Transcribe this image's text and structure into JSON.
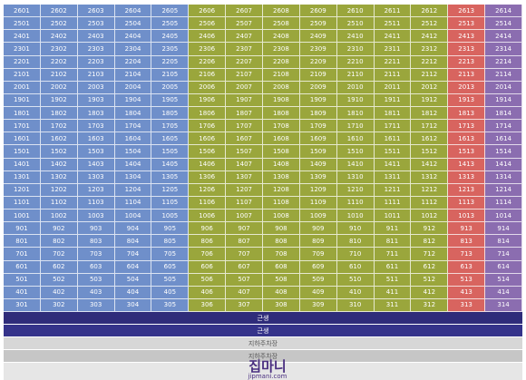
{
  "grid": {
    "rows": [
      [
        "2601",
        "2602",
        "2603",
        "2604",
        "2605",
        "2606",
        "2607",
        "2608",
        "2609",
        "2610",
        "2611",
        "2612",
        "2613",
        "2614"
      ],
      [
        "2501",
        "2502",
        "2503",
        "2504",
        "2505",
        "2506",
        "2507",
        "2508",
        "2509",
        "2510",
        "2511",
        "2512",
        "2513",
        "2514"
      ],
      [
        "2401",
        "2402",
        "2403",
        "2404",
        "2405",
        "2406",
        "2407",
        "2408",
        "2409",
        "2410",
        "2411",
        "2412",
        "2413",
        "2414"
      ],
      [
        "2301",
        "2302",
        "2303",
        "2304",
        "2305",
        "2306",
        "2307",
        "2308",
        "2309",
        "2310",
        "2311",
        "2312",
        "2313",
        "2314"
      ],
      [
        "2201",
        "2202",
        "2203",
        "2204",
        "2205",
        "2206",
        "2207",
        "2208",
        "2209",
        "2210",
        "2211",
        "2212",
        "2213",
        "2214"
      ],
      [
        "2101",
        "2102",
        "2103",
        "2104",
        "2105",
        "2106",
        "2107",
        "2108",
        "2109",
        "2110",
        "2111",
        "2112",
        "2113",
        "2114"
      ],
      [
        "2001",
        "2002",
        "2003",
        "2004",
        "2005",
        "2006",
        "2007",
        "2008",
        "2009",
        "2010",
        "2011",
        "2012",
        "2013",
        "2014"
      ],
      [
        "1901",
        "1902",
        "1903",
        "1904",
        "1905",
        "1906",
        "1907",
        "1908",
        "1909",
        "1910",
        "1911",
        "1912",
        "1913",
        "1914"
      ],
      [
        "1801",
        "1802",
        "1803",
        "1804",
        "1805",
        "1806",
        "1807",
        "1808",
        "1809",
        "1810",
        "1811",
        "1812",
        "1813",
        "1814"
      ],
      [
        "1701",
        "1702",
        "1703",
        "1704",
        "1705",
        "1706",
        "1707",
        "1708",
        "1709",
        "1710",
        "1711",
        "1712",
        "1713",
        "1714"
      ],
      [
        "1601",
        "1602",
        "1603",
        "1604",
        "1605",
        "1606",
        "1607",
        "1608",
        "1609",
        "1610",
        "1611",
        "1612",
        "1613",
        "1614"
      ],
      [
        "1501",
        "1502",
        "1503",
        "1504",
        "1505",
        "1506",
        "1507",
        "1508",
        "1509",
        "1510",
        "1511",
        "1512",
        "1513",
        "1514"
      ],
      [
        "1401",
        "1402",
        "1403",
        "1404",
        "1405",
        "1406",
        "1407",
        "1408",
        "1409",
        "1410",
        "1411",
        "1412",
        "1413",
        "1414"
      ],
      [
        "1301",
        "1302",
        "1303",
        "1304",
        "1305",
        "1306",
        "1307",
        "1308",
        "1309",
        "1310",
        "1311",
        "1312",
        "1313",
        "1314"
      ],
      [
        "1201",
        "1202",
        "1203",
        "1204",
        "1205",
        "1206",
        "1207",
        "1208",
        "1209",
        "1210",
        "1211",
        "1212",
        "1213",
        "1214"
      ],
      [
        "1101",
        "1102",
        "1103",
        "1104",
        "1105",
        "1106",
        "1107",
        "1108",
        "1109",
        "1110",
        "1111",
        "1112",
        "1113",
        "1114"
      ],
      [
        "1001",
        "1002",
        "1003",
        "1004",
        "1005",
        "1006",
        "1007",
        "1008",
        "1009",
        "1010",
        "1011",
        "1012",
        "1013",
        "1014"
      ],
      [
        "901",
        "902",
        "903",
        "904",
        "905",
        "906",
        "907",
        "908",
        "909",
        "910",
        "911",
        "912",
        "913",
        "914"
      ],
      [
        "801",
        "802",
        "803",
        "804",
        "805",
        "806",
        "807",
        "808",
        "809",
        "810",
        "811",
        "812",
        "813",
        "814"
      ],
      [
        "701",
        "702",
        "703",
        "704",
        "705",
        "706",
        "707",
        "708",
        "709",
        "710",
        "711",
        "712",
        "713",
        "714"
      ],
      [
        "601",
        "602",
        "603",
        "604",
        "605",
        "606",
        "607",
        "608",
        "609",
        "610",
        "611",
        "612",
        "613",
        "614"
      ],
      [
        "501",
        "502",
        "503",
        "504",
        "505",
        "506",
        "507",
        "508",
        "509",
        "510",
        "511",
        "512",
        "513",
        "514"
      ],
      [
        "401",
        "402",
        "403",
        "404",
        "405",
        "406",
        "407",
        "408",
        "409",
        "410",
        "411",
        "412",
        "413",
        "414"
      ],
      [
        "301",
        "302",
        "303",
        "304",
        "305",
        "306",
        "307",
        "308",
        "309",
        "310",
        "311",
        "312",
        "313",
        "314"
      ]
    ]
  },
  "footer": {
    "bands": [
      "근생",
      "근생",
      "지하주차장",
      "지하주차장"
    ]
  },
  "watermark": {
    "brand": "집마니",
    "url": "jipmani.com"
  }
}
